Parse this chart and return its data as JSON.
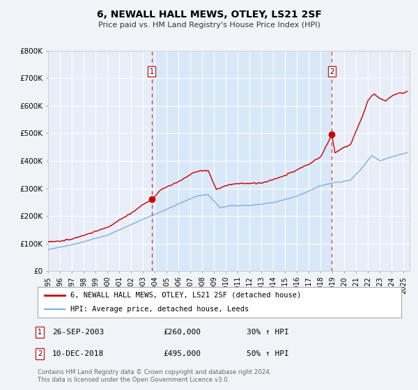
{
  "title": "6, NEWALL HALL MEWS, OTLEY, LS21 2SF",
  "subtitle": "Price paid vs. HM Land Registry's House Price Index (HPI)",
  "x_start": 1995.0,
  "x_end": 2025.5,
  "y_min": 0,
  "y_max": 800000,
  "y_ticks": [
    0,
    100000,
    200000,
    300000,
    400000,
    500000,
    600000,
    700000,
    800000
  ],
  "y_tick_labels": [
    "£0",
    "£100K",
    "£200K",
    "£300K",
    "£400K",
    "£500K",
    "£600K",
    "£700K",
    "£800K"
  ],
  "fig_bg_color": "#f0f4f8",
  "plot_bg_color": "#e8eef8",
  "grid_color": "#ffffff",
  "transaction1_x": 2003.74,
  "transaction1_y": 260000,
  "transaction1_label": "1",
  "transaction1_date": "26-SEP-2003",
  "transaction1_price": "£260,000",
  "transaction1_hpi": "30% ↑ HPI",
  "transaction2_x": 2018.94,
  "transaction2_y": 495000,
  "transaction2_label": "2",
  "transaction2_date": "10-DEC-2018",
  "transaction2_price": "£495,000",
  "transaction2_hpi": "50% ↑ HPI",
  "red_color": "#cc0000",
  "blue_color": "#7aaadd",
  "legend_line1": "6, NEWALL HALL MEWS, OTLEY, LS21 2SF (detached house)",
  "legend_line2": "HPI: Average price, detached house, Leeds",
  "footer1": "Contains HM Land Registry data © Crown copyright and database right 2024.",
  "footer2": "This data is licensed under the Open Government Licence v3.0.",
  "shaded_region_color": "#d8e8f8",
  "x_ticks": [
    1995,
    1996,
    1997,
    1998,
    1999,
    2000,
    2001,
    2002,
    2003,
    2004,
    2005,
    2006,
    2007,
    2008,
    2009,
    2010,
    2011,
    2012,
    2013,
    2014,
    2015,
    2016,
    2017,
    2018,
    2019,
    2020,
    2021,
    2022,
    2023,
    2024,
    2025
  ]
}
